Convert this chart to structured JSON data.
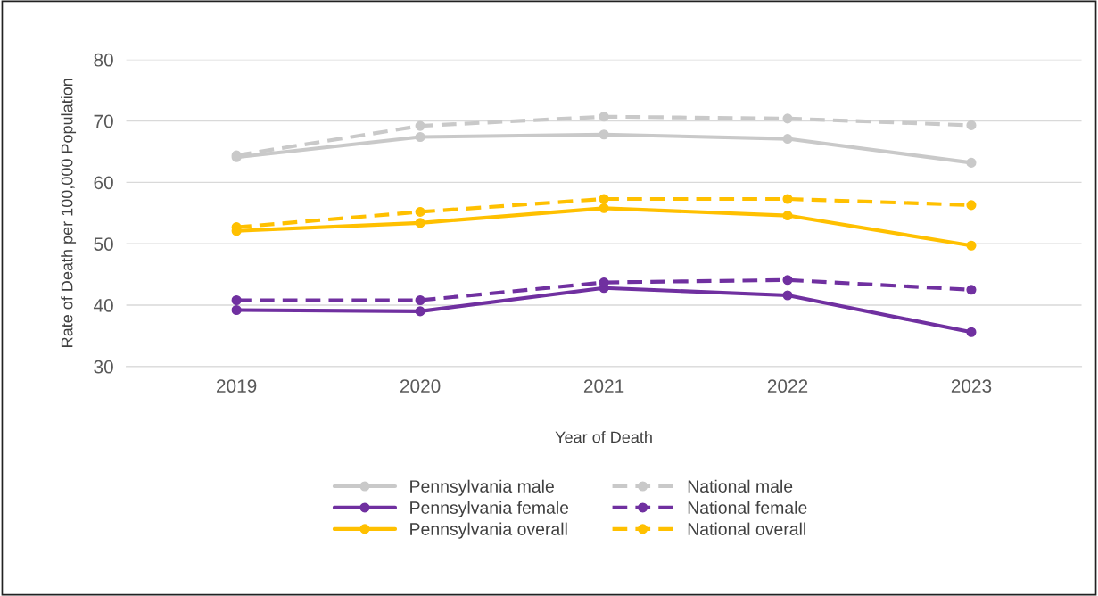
{
  "chart_data": {
    "type": "line",
    "xlabel": "Year of Death",
    "ylabel": "Rate of Death per 100,000 Population",
    "categories": [
      "2019",
      "2020",
      "2021",
      "2022",
      "2023"
    ],
    "series": [
      {
        "name": "Pennsylvania male",
        "color": "#c9c9c9",
        "line_style": "solid",
        "values": [
          64.1,
          67.4,
          67.8,
          67.1,
          63.2
        ]
      },
      {
        "name": "Pennsylvania female",
        "color": "#7030a0",
        "line_style": "solid",
        "values": [
          39.2,
          39.0,
          42.8,
          41.6,
          35.6
        ]
      },
      {
        "name": "Pennsylvania overall",
        "color": "#ffc000",
        "line_style": "solid",
        "values": [
          52.1,
          53.4,
          55.8,
          54.6,
          49.7
        ]
      },
      {
        "name": "National male",
        "color": "#c9c9c9",
        "line_style": "dashed",
        "values": [
          64.4,
          69.2,
          70.7,
          70.4,
          69.3
        ]
      },
      {
        "name": "National female",
        "color": "#7030a0",
        "line_style": "dashed",
        "values": [
          40.8,
          40.8,
          43.7,
          44.1,
          42.5
        ]
      },
      {
        "name": "National overall",
        "color": "#ffc000",
        "line_style": "dashed",
        "values": [
          52.7,
          55.2,
          57.3,
          57.3,
          56.3
        ]
      }
    ],
    "ylim": [
      30,
      80
    ],
    "yticks": [
      30,
      40,
      50,
      60,
      70,
      80
    ],
    "grid": "y",
    "legend": "bottom",
    "marker": "circle"
  }
}
